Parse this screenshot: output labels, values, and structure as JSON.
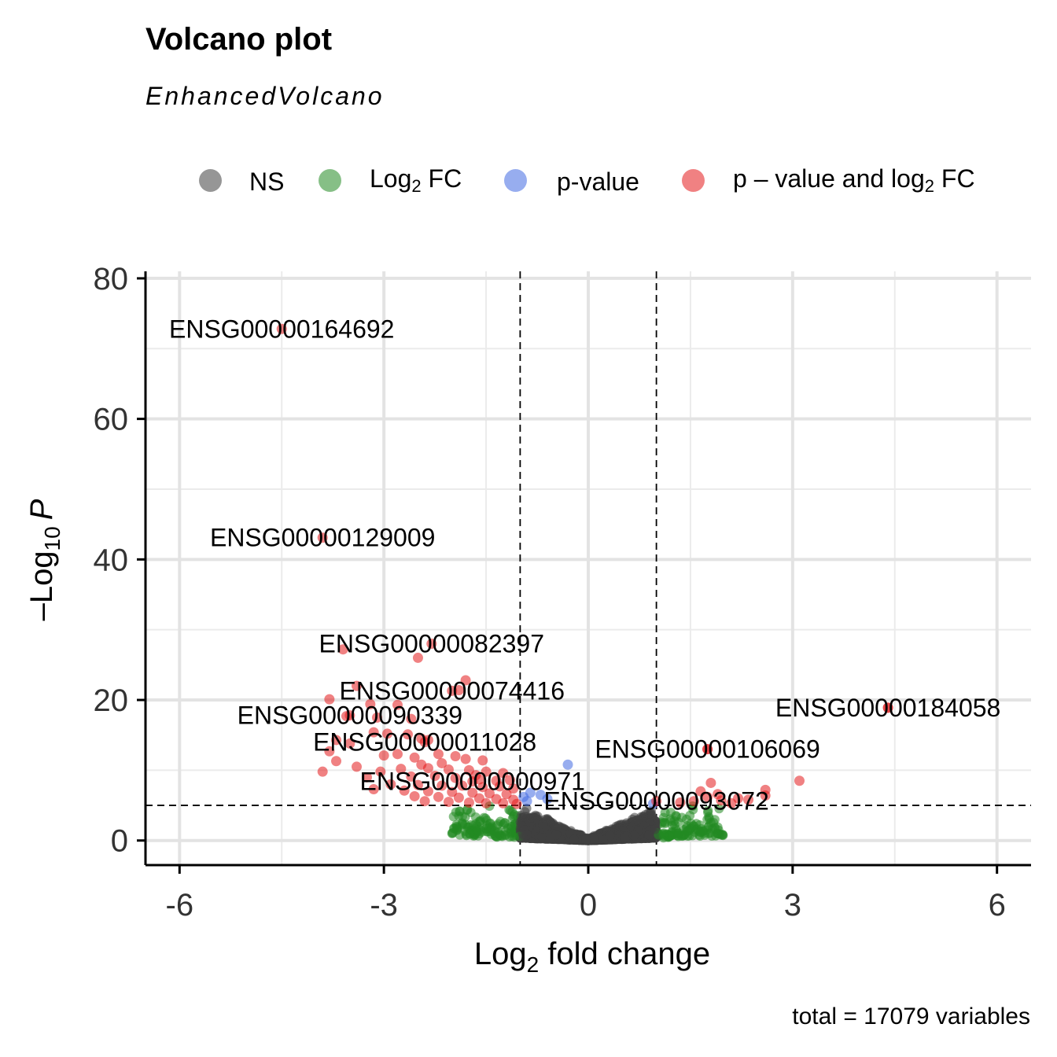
{
  "chart_data": {
    "type": "scatter",
    "title": "Volcano plot",
    "subtitle": "EnhancedVolcano",
    "xlabel_main": "Log",
    "xlabel_sub": "2",
    "xlabel_tail": " fold change",
    "ylabel_main": "–Log",
    "ylabel_sub": "10",
    "ylabel_tail": "P",
    "caption": "total = 17079 variables",
    "xlim": [
      -6.5,
      6.5
    ],
    "ylim": [
      -3.5,
      81
    ],
    "xticks": [
      -6,
      -3,
      0,
      3,
      6
    ],
    "xtick_labels": [
      "-6",
      "-3",
      "0",
      "3",
      "6"
    ],
    "yticks": [
      0,
      20,
      40,
      60,
      80
    ],
    "ytick_labels": [
      "0",
      "20",
      "40",
      "60",
      "80"
    ],
    "fc_cutoff": 1,
    "p_cutoff_log10": 5,
    "grid": true,
    "legend_position": "top",
    "legend": [
      {
        "key": "NS",
        "label": "NS",
        "color": "#404040"
      },
      {
        "key": "FC",
        "label_main": "Log",
        "label_sub": "2",
        "label_tail": " FC",
        "color": "#228B22"
      },
      {
        "key": "P",
        "label": "p-value",
        "color": "#4169E1"
      },
      {
        "key": "FC_P",
        "label_main": "p – value and log",
        "label_sub": "2",
        "label_tail": " FC",
        "color": "#E41A1C"
      }
    ],
    "labeled_points": [
      {
        "label": "ENSG00000164692",
        "x": -4.5,
        "y": 72.8
      },
      {
        "label": "ENSG00000129009",
        "x": -3.9,
        "y": 43.1
      },
      {
        "label": "ENSG00000082397",
        "x": -2.3,
        "y": 28.0
      },
      {
        "label": "ENSG00000074416",
        "x": -2.0,
        "y": 21.3
      },
      {
        "label": "ENSG00000090339",
        "x": -3.5,
        "y": 17.8
      },
      {
        "label": "ENSG00000011028",
        "x": -2.4,
        "y": 14.0
      },
      {
        "label": "ENSG00000184058",
        "x": 4.4,
        "y": 18.9
      },
      {
        "label": "ENSG00000106069",
        "x": 1.75,
        "y": 13.0
      },
      {
        "label": "ENSG00000000971",
        "x": -1.7,
        "y": 8.4
      },
      {
        "label": "ENSG00000093072",
        "x": 1.0,
        "y": 5.6
      }
    ],
    "series": [
      {
        "name": "p – value and log2 FC",
        "category": "FC_P",
        "points": [
          [
            -3.6,
            27.2
          ],
          [
            -2.5,
            26.0
          ],
          [
            -1.8,
            22.8
          ],
          [
            -1.9,
            21.4
          ],
          [
            -3.4,
            22.0
          ],
          [
            -3.8,
            20.1
          ],
          [
            -3.2,
            19.4
          ],
          [
            -2.8,
            19.3
          ],
          [
            -3.1,
            17.5
          ],
          [
            -2.6,
            17.3
          ],
          [
            -3.55,
            17.7
          ],
          [
            -3.15,
            15.4
          ],
          [
            -2.95,
            15.2
          ],
          [
            -2.65,
            15.1
          ],
          [
            -3.7,
            14.3
          ],
          [
            -2.45,
            14.5
          ],
          [
            -2.35,
            14.3
          ],
          [
            -3.5,
            13.8
          ],
          [
            -2.8,
            12.3
          ],
          [
            -3.0,
            12.1
          ],
          [
            -2.2,
            12.3
          ],
          [
            -1.95,
            12.0
          ],
          [
            -2.55,
            11.8
          ],
          [
            -3.8,
            12.7
          ],
          [
            -3.7,
            11.3
          ],
          [
            -3.9,
            9.8
          ],
          [
            -3.4,
            10.5
          ],
          [
            -3.05,
            9.8
          ],
          [
            -2.75,
            10.2
          ],
          [
            -2.35,
            10.3
          ],
          [
            -2.05,
            10.1
          ],
          [
            -1.75,
            10.0
          ],
          [
            -1.5,
            9.8
          ],
          [
            -3.25,
            9.0
          ],
          [
            -2.6,
            9.1
          ],
          [
            -2.25,
            9.2
          ],
          [
            -1.95,
            8.9
          ],
          [
            -1.6,
            8.7
          ],
          [
            -1.35,
            8.5
          ],
          [
            -1.15,
            8.6
          ],
          [
            -2.9,
            8.0
          ],
          [
            -2.5,
            7.9
          ],
          [
            -2.15,
            7.8
          ],
          [
            -1.85,
            7.8
          ],
          [
            -1.55,
            7.6
          ],
          [
            -1.3,
            7.7
          ],
          [
            -1.1,
            7.4
          ],
          [
            -3.15,
            7.3
          ],
          [
            -2.7,
            7.1
          ],
          [
            -2.35,
            7.0
          ],
          [
            -2.0,
            6.9
          ],
          [
            -1.7,
            6.8
          ],
          [
            -1.45,
            6.7
          ],
          [
            -1.2,
            6.6
          ],
          [
            -2.55,
            6.3
          ],
          [
            -2.2,
            6.2
          ],
          [
            -1.9,
            6.1
          ],
          [
            -1.6,
            6.0
          ],
          [
            -1.35,
            5.9
          ],
          [
            -1.1,
            5.8
          ],
          [
            -2.4,
            5.6
          ],
          [
            -2.05,
            5.5
          ],
          [
            -1.75,
            5.4
          ],
          [
            -1.5,
            5.3
          ],
          [
            -1.25,
            5.3
          ],
          [
            -1.05,
            5.2
          ],
          [
            -1.55,
            11.4
          ],
          [
            -2.15,
            11.0
          ],
          [
            -1.8,
            11.6
          ],
          [
            -2.45,
            10.8
          ],
          [
            -1.65,
            9.3
          ],
          [
            -1.25,
            9.6
          ],
          [
            4.4,
            18.9
          ],
          [
            1.75,
            13.0
          ],
          [
            3.1,
            8.5
          ],
          [
            1.8,
            8.2
          ],
          [
            2.6,
            7.2
          ],
          [
            2.6,
            6.4
          ],
          [
            2.35,
            5.8
          ],
          [
            1.75,
            6.2
          ],
          [
            1.95,
            5.7
          ],
          [
            1.55,
            5.6
          ],
          [
            1.35,
            5.4
          ],
          [
            2.1,
            5.3
          ],
          [
            1.65,
            7.0
          ],
          [
            1.9,
            6.6
          ],
          [
            2.2,
            6.0
          ]
        ]
      },
      {
        "name": "p-value",
        "category": "P",
        "points": [
          [
            -0.3,
            10.8
          ],
          [
            -0.85,
            6.8
          ],
          [
            -0.95,
            6.2
          ],
          [
            -0.7,
            6.5
          ],
          [
            -0.9,
            5.6
          ],
          [
            -0.6,
            5.9
          ],
          [
            0.95,
            5.2
          ]
        ]
      }
    ]
  }
}
